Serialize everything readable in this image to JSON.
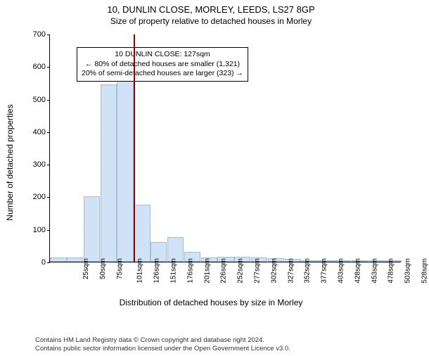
{
  "title": "10, DUNLIN CLOSE, MORLEY, LEEDS, LS27 8GP",
  "subtitle": "Size of property relative to detached houses in Morley",
  "ylabel": "Number of detached properties",
  "xlabel": "Distribution of detached houses by size in Morley",
  "chart": {
    "type": "histogram",
    "ylim": [
      0,
      700
    ],
    "ytick_step": 100,
    "yticks": [
      0,
      100,
      200,
      300,
      400,
      500,
      600,
      700
    ],
    "categories": [
      "25sqm",
      "50sqm",
      "75sqm",
      "101sqm",
      "126sqm",
      "151sqm",
      "176sqm",
      "201sqm",
      "226sqm",
      "252sqm",
      "277sqm",
      "302sqm",
      "327sqm",
      "352sqm",
      "377sqm",
      "403sqm",
      "428sqm",
      "453sqm",
      "478sqm",
      "503sqm",
      "528sqm"
    ],
    "values": [
      12,
      12,
      200,
      545,
      555,
      175,
      60,
      75,
      30,
      12,
      15,
      15,
      12,
      10,
      8,
      2,
      0,
      2,
      0,
      0,
      2
    ],
    "bar_fill": "#cfe2f6",
    "bar_stroke": "#9fbfd9",
    "background_color": "#ffffff",
    "grid_color": "#e5e5e5",
    "marker_color": "#a00000",
    "marker_bin_index": 4
  },
  "callout": {
    "line1": "10 DUNLIN CLOSE: 127sqm",
    "line2": "← 80% of detached houses are smaller (1,321)",
    "line3": "20% of semi-detached houses are larger (323) →"
  },
  "footer": {
    "line1": "Contains HM Land Registry data © Crown copyright and database right 2024.",
    "line2": "Contains public sector information licensed under the Open Government Licence v3.0."
  }
}
